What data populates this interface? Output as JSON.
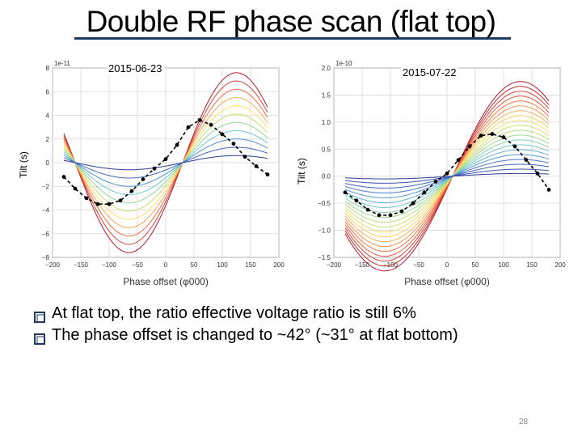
{
  "title": "Double RF phase scan (flat top)",
  "colors": {
    "title_rule": "#1f3864",
    "bullet_box": "#1f3864",
    "data_markers": "#000000"
  },
  "chart_data": [
    {
      "type": "line",
      "label": "2015-06-23",
      "ylabel": "Tilt (s)",
      "xlabel": "Phase offset (φ000)",
      "y_multiplier": "1e-11",
      "xlim": [
        -200,
        200
      ],
      "ylim": [
        -8,
        8
      ],
      "xticks": [
        "−200",
        "−150",
        "−100",
        "−50",
        "0",
        "50",
        "100",
        "150",
        "200"
      ],
      "yticks": [
        "−8",
        "−6",
        "−4",
        "−2",
        "0",
        "2",
        "4",
        "6",
        "8"
      ],
      "grid": true,
      "model_curves": {
        "count": 11,
        "x": [
          -180,
          180
        ],
        "zero_crossing": 30,
        "peak_x": 125,
        "amplitudes": [
          7.6,
          6.9,
          6.2,
          5.5,
          4.8,
          4.1,
          3.4,
          2.7,
          2.0,
          1.3,
          0.6
        ],
        "color_order": "red to blue"
      },
      "measurement": {
        "style": "dashed with dots",
        "x": [
          -180,
          -160,
          -140,
          -120,
          -100,
          -80,
          -60,
          -40,
          -20,
          0,
          20,
          40,
          60,
          80,
          100,
          120,
          140,
          160,
          180
        ],
        "y": [
          -1.2,
          -2.2,
          -3.0,
          -3.5,
          -3.5,
          -3.2,
          -2.4,
          -1.4,
          -0.5,
          0.3,
          1.5,
          3.0,
          3.6,
          3.2,
          2.4,
          1.6,
          0.5,
          -0.3,
          -1.0
        ]
      }
    },
    {
      "type": "line",
      "label": "2015-07-22",
      "ylabel": "Tilt (s)",
      "xlabel": "Phase offset (φ000)",
      "y_multiplier": "1e-10",
      "xlim": [
        -200,
        200
      ],
      "ylim": [
        -1.5,
        2.0
      ],
      "xticks": [
        "−200",
        "−150",
        "−100",
        "−50",
        "0",
        "50",
        "100",
        "150",
        "200"
      ],
      "yticks": [
        "−1.5",
        "−1.0",
        "−0.5",
        "0.0",
        "0.5",
        "1.0",
        "1.5",
        "2.0"
      ],
      "grid": true,
      "model_curves": {
        "count": 20,
        "x": [
          -180,
          180
        ],
        "zero_crossing": 10,
        "peak_x": 130,
        "amplitudes": [
          1.75,
          1.66,
          1.57,
          1.48,
          1.39,
          1.3,
          1.21,
          1.12,
          1.03,
          0.94,
          0.85,
          0.76,
          0.67,
          0.58,
          0.49,
          0.4,
          0.31,
          0.22,
          0.13,
          0.05
        ],
        "color_order": "red to blue"
      },
      "measurement": {
        "style": "dashed with dots",
        "x": [
          -180,
          -160,
          -140,
          -120,
          -100,
          -80,
          -60,
          -40,
          -20,
          0,
          20,
          40,
          60,
          80,
          100,
          120,
          140,
          160,
          180
        ],
        "y": [
          -0.3,
          -0.45,
          -0.62,
          -0.72,
          -0.72,
          -0.65,
          -0.5,
          -0.3,
          -0.1,
          0.05,
          0.3,
          0.55,
          0.75,
          0.78,
          0.72,
          0.55,
          0.3,
          0.05,
          -0.25
        ]
      }
    }
  ],
  "bullets": [
    "At flat top, the ratio effective voltage ratio is still 6%",
    "The phase offset is changed to ~42° (~31° at flat bottom)"
  ],
  "page_number": "28"
}
